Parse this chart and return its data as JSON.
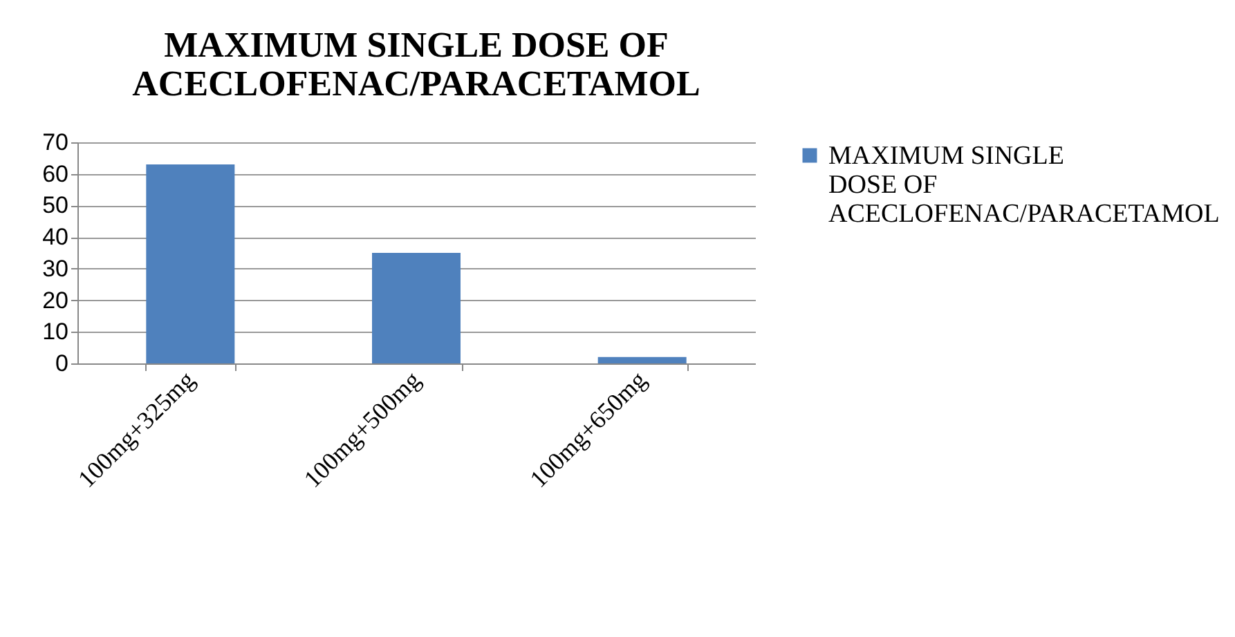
{
  "chart_data": {
    "type": "bar",
    "title": "MAXIMUM SINGLE DOSE OF ACECLOFENAC/PARACETAMOL",
    "categories": [
      "100mg+325mg",
      "100mg+500mg",
      "100mg+650mg"
    ],
    "series": [
      {
        "name": "MAXIMUM SINGLE DOSE OF ACECLOFENAC/PARACETAMOL",
        "color": "#4f81bd",
        "values": [
          63,
          35,
          2
        ]
      }
    ],
    "ylim": [
      0,
      70
    ],
    "yticks": [
      0,
      10,
      20,
      30,
      40,
      50,
      60,
      70
    ],
    "grid": "y",
    "legend": "right"
  }
}
